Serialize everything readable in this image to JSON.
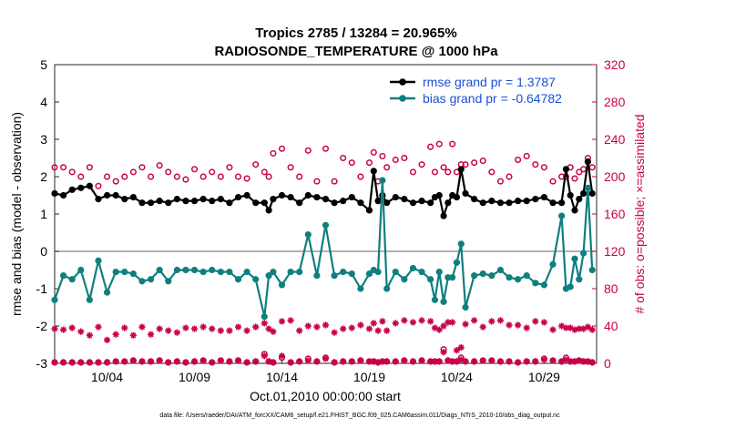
{
  "chart_data": {
    "type": "line",
    "title": "Tropics 2785 / 13284 = 20.965%",
    "subtitle": "RADIOSONDE_TEMPERATURE @ 1000 hPa",
    "ylabel_left": "rmse and bias (model - observation)",
    "ylabel_right": "# of obs: o=possible; ×=assimilated",
    "xlabel": "Oct.01,2010 00:00:00 start",
    "footer": "data file: /Users/raeder/DAI/ATM_forcXX/CAM6_setup/f.e21.FHIST_BGC.f09_025.CAM6assim.011/Diags_NTrS_2010-10/obs_diag_output.nc",
    "ylim_left": [
      -3,
      5
    ],
    "ylim_right": [
      0,
      320
    ],
    "xlim": [
      1,
      32
    ],
    "yticks_left": [
      "-3",
      "-2",
      "-1",
      "0",
      "1",
      "2",
      "3",
      "4",
      "5"
    ],
    "yticks_right": [
      "0",
      "40",
      "80",
      "120",
      "160",
      "200",
      "240",
      "280",
      "320"
    ],
    "xticks": [
      {
        "x": 4,
        "label": "10/04"
      },
      {
        "x": 9,
        "label": "10/09"
      },
      {
        "x": 14,
        "label": "10/14"
      },
      {
        "x": 19,
        "label": "10/19"
      },
      {
        "x": 24,
        "label": "10/24"
      },
      {
        "x": 29,
        "label": "10/29"
      }
    ],
    "legend": [
      {
        "name": "rmse grand pr = 1.3787",
        "color": "#000000"
      },
      {
        "name": "bias grand pr = -0.64782",
        "color": "#0f7f7f"
      }
    ],
    "x": [
      1.0,
      1.5,
      2.0,
      2.5,
      3.0,
      3.5,
      4.0,
      4.5,
      5.0,
      5.5,
      6.0,
      6.5,
      7.0,
      7.5,
      8.0,
      8.5,
      9.0,
      9.5,
      10.0,
      10.5,
      11.0,
      11.5,
      12.0,
      12.5,
      13.0,
      13.25,
      13.5,
      14.0,
      14.5,
      15.0,
      15.5,
      16.0,
      16.5,
      17.0,
      17.5,
      18.0,
      18.5,
      19.0,
      19.25,
      19.5,
      19.75,
      20.0,
      20.5,
      21.0,
      21.5,
      22.0,
      22.5,
      22.75,
      23.0,
      23.25,
      23.5,
      23.75,
      24.0,
      24.25,
      24.5,
      25.0,
      25.5,
      26.0,
      26.5,
      27.0,
      27.5,
      28.0,
      28.5,
      29.0,
      29.5,
      30.0,
      30.25,
      30.5,
      30.75,
      31.0,
      31.25,
      31.5,
      31.75
    ],
    "series": [
      {
        "name": "rmse",
        "color": "#000000",
        "values": [
          1.55,
          1.5,
          1.65,
          1.7,
          1.75,
          1.4,
          1.5,
          1.5,
          1.4,
          1.45,
          1.3,
          1.3,
          1.35,
          1.3,
          1.4,
          1.35,
          1.35,
          1.4,
          1.35,
          1.4,
          1.3,
          1.45,
          1.5,
          1.3,
          1.3,
          1.1,
          1.4,
          1.5,
          1.45,
          1.3,
          1.5,
          1.45,
          1.4,
          1.3,
          1.35,
          1.45,
          1.3,
          1.1,
          2.15,
          1.35,
          1.5,
          1.3,
          1.45,
          1.4,
          1.3,
          1.35,
          1.3,
          1.45,
          1.5,
          0.95,
          1.3,
          1.5,
          1.45,
          2.2,
          1.55,
          1.4,
          1.3,
          1.35,
          1.3,
          1.3,
          1.35,
          1.35,
          1.4,
          1.45,
          1.3,
          1.3,
          2.2,
          1.5,
          1.1,
          1.4,
          1.55,
          2.4,
          1.55
        ]
      },
      {
        "name": "bias",
        "color": "#0f7f7f",
        "values": [
          -1.3,
          -0.65,
          -0.75,
          -0.5,
          -1.3,
          -0.25,
          -1.1,
          -0.55,
          -0.55,
          -0.6,
          -0.8,
          -0.75,
          -0.5,
          -0.8,
          -0.5,
          -0.5,
          -0.5,
          -0.55,
          -0.5,
          -0.55,
          -0.55,
          -0.75,
          -0.55,
          -0.75,
          -1.75,
          -0.65,
          -0.55,
          -0.9,
          -0.55,
          -0.55,
          0.45,
          -0.65,
          0.7,
          -0.65,
          -0.55,
          -0.6,
          -1.0,
          -0.6,
          -0.5,
          -0.55,
          1.9,
          -1.0,
          -0.55,
          -0.75,
          -0.45,
          -0.55,
          -0.75,
          -1.3,
          -0.55,
          -1.35,
          -0.7,
          -0.7,
          -0.3,
          0.2,
          -1.5,
          -0.65,
          -0.6,
          -0.65,
          -0.5,
          -0.7,
          -0.75,
          -0.65,
          -0.85,
          -0.9,
          -0.35,
          0.95,
          -1.0,
          -0.95,
          -0.2,
          -0.75,
          -0.05,
          1.7,
          -0.5
        ]
      },
      {
        "name": "possible",
        "color": "#c8004b",
        "values": [
          210,
          210,
          205,
          200,
          210,
          190,
          200,
          195,
          200,
          205,
          210,
          200,
          212,
          205,
          200,
          197,
          208,
          200,
          205,
          200,
          210,
          200,
          198,
          213,
          205,
          200,
          225,
          230,
          210,
          200,
          228,
          195,
          230,
          195,
          220,
          215,
          200,
          215,
          226,
          195,
          222,
          210,
          218,
          220,
          205,
          213,
          232,
          205,
          235,
          210,
          205,
          235,
          205,
          213,
          213,
          215,
          217,
          205,
          195,
          200,
          218,
          222,
          213,
          210,
          195,
          200,
          200,
          210,
          198,
          205,
          208,
          220,
          210
        ]
      },
      {
        "name": "assimilated",
        "color": "#c8004b",
        "values": [
          37,
          36,
          38,
          34,
          30,
          39,
          25,
          31,
          38,
          30,
          39,
          31,
          37,
          35,
          33,
          38,
          37,
          39,
          37,
          35,
          35,
          39,
          35,
          39,
          43,
          37,
          34,
          45,
          46,
          35,
          40,
          39,
          41,
          33,
          37,
          38,
          41,
          37,
          43,
          35,
          45,
          35,
          43,
          46,
          44,
          46,
          45,
          38,
          36,
          40,
          44,
          44,
          14,
          17,
          42,
          46,
          39,
          45,
          46,
          41,
          41,
          38,
          45,
          44,
          36,
          40,
          38,
          38,
          36,
          37,
          37,
          39,
          36
        ]
      }
    ],
    "bottom_series_values": [
      1,
      1,
      1,
      1,
      1,
      1,
      1,
      2,
      2,
      3,
      2,
      2,
      3,
      1,
      2,
      1,
      2,
      3,
      1,
      3,
      2,
      3,
      1,
      2,
      8,
      2,
      1,
      8,
      1,
      2,
      3,
      2,
      5,
      1,
      2,
      2,
      3,
      2,
      2,
      1,
      2,
      2,
      2,
      3,
      2,
      3,
      2,
      2,
      2,
      12,
      3,
      2,
      2,
      4,
      2,
      2,
      3,
      3,
      2,
      2,
      1,
      2,
      2,
      4,
      3,
      2,
      4,
      2,
      2,
      3,
      2,
      2,
      1
    ],
    "bottom_possible_values": [
      1,
      1,
      1,
      1,
      1,
      1,
      1,
      2,
      2,
      3,
      2,
      2,
      3,
      1,
      2,
      1,
      2,
      3,
      1,
      3,
      2,
      3,
      1,
      2,
      10,
      2,
      1,
      6,
      1,
      2,
      5,
      2,
      6,
      1,
      2,
      2,
      3,
      2,
      2,
      1,
      2,
      2,
      2,
      3,
      2,
      3,
      2,
      2,
      2,
      15,
      3,
      2,
      2,
      6,
      2,
      2,
      3,
      3,
      2,
      2,
      1,
      2,
      2,
      5,
      3,
      2,
      6,
      2,
      2,
      3,
      2,
      2,
      1
    ]
  }
}
